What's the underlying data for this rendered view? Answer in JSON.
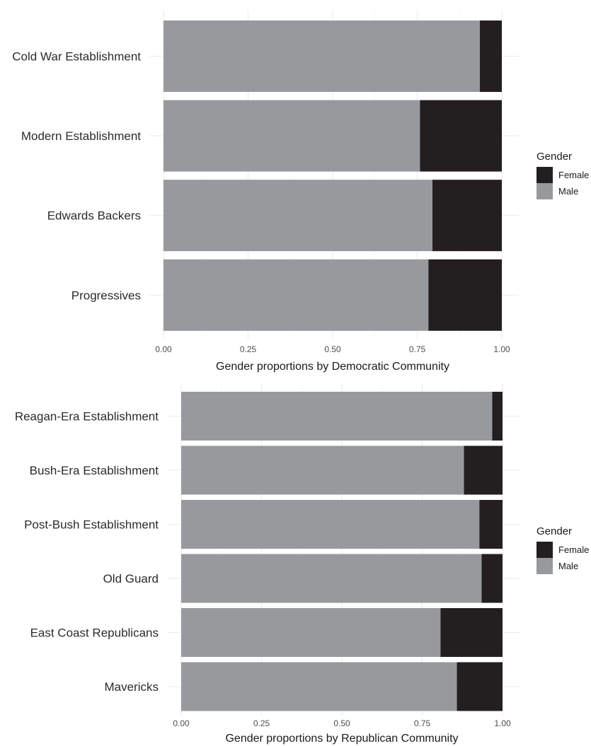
{
  "chart_data": [
    {
      "type": "bar",
      "orientation": "horizontal",
      "stacked": true,
      "categories": [
        "Cold War Establishment",
        "Modern Establishment",
        "Edwards Backers",
        "Progressives"
      ],
      "series": [
        {
          "name": "Male",
          "values": [
            0.935,
            0.758,
            0.795,
            0.783
          ]
        },
        {
          "name": "Female",
          "values": [
            0.065,
            0.242,
            0.205,
            0.217
          ]
        }
      ],
      "xlabel": "Gender proportions by Democratic Community",
      "ylabel": "",
      "xlim": [
        0,
        1
      ],
      "xticks": [
        "0.00",
        "0.25",
        "0.50",
        "0.75",
        "1.00"
      ],
      "grid": true,
      "legend": {
        "title": "Gender",
        "position": "right",
        "entries": [
          "Female",
          "Male"
        ]
      }
    },
    {
      "type": "bar",
      "orientation": "horizontal",
      "stacked": true,
      "categories": [
        "Reagan-Era Establishment",
        "Bush-Era Establishment",
        "Post-Bush Establishment",
        "Old Guard",
        "East Coast Republicans",
        "Mavericks"
      ],
      "series": [
        {
          "name": "Male",
          "values": [
            0.968,
            0.88,
            0.928,
            0.935,
            0.807,
            0.858
          ]
        },
        {
          "name": "Female",
          "values": [
            0.032,
            0.12,
            0.072,
            0.065,
            0.193,
            0.142
          ]
        }
      ],
      "xlabel": "Gender proportions by Republican Community",
      "ylabel": "",
      "xlim": [
        0,
        1
      ],
      "xticks": [
        "0.00",
        "0.25",
        "0.50",
        "0.75",
        "1.00"
      ],
      "grid": true,
      "legend": {
        "title": "Gender",
        "position": "right",
        "entries": [
          "Female",
          "Male"
        ]
      }
    }
  ],
  "colors": {
    "Male": "#98999d",
    "Female": "#231f20"
  }
}
